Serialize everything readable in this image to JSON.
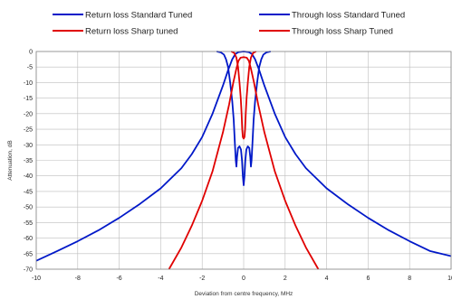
{
  "chart_data": {
    "type": "line",
    "title": "",
    "xlabel": "Deviation from centre frequency, MHz",
    "ylabel": "Attenuation, dB",
    "xlim": [
      -10,
      10
    ],
    "ylim": [
      -70,
      0
    ],
    "x_ticks": [
      -10,
      -8,
      -6,
      -4,
      -2,
      0,
      2,
      4,
      6,
      8,
      10
    ],
    "y_ticks": [
      0,
      -5,
      -10,
      -15,
      -20,
      -25,
      -30,
      -35,
      -40,
      -45,
      -50,
      -55,
      -60,
      -65,
      -70
    ],
    "grid": true,
    "legend_position": "top",
    "series": [
      {
        "name": "Return loss Standard Tuned",
        "color": "#0018c8",
        "points": [
          [
            -1.3,
            0
          ],
          [
            -1.1,
            -0.3
          ],
          [
            -0.95,
            -1
          ],
          [
            -0.85,
            -2.5
          ],
          [
            -0.75,
            -5
          ],
          [
            -0.65,
            -10
          ],
          [
            -0.55,
            -16
          ],
          [
            -0.48,
            -22
          ],
          [
            -0.42,
            -30
          ],
          [
            -0.38,
            -35
          ],
          [
            -0.35,
            -37
          ],
          [
            -0.32,
            -34
          ],
          [
            -0.27,
            -31
          ],
          [
            -0.2,
            -30.5
          ],
          [
            -0.13,
            -31.5
          ],
          [
            -0.08,
            -35
          ],
          [
            -0.04,
            -40
          ],
          [
            0,
            -43
          ],
          [
            0.04,
            -40
          ],
          [
            0.08,
            -35
          ],
          [
            0.13,
            -31.5
          ],
          [
            0.2,
            -30.5
          ],
          [
            0.27,
            -31
          ],
          [
            0.32,
            -34
          ],
          [
            0.35,
            -37
          ],
          [
            0.38,
            -35
          ],
          [
            0.42,
            -30
          ],
          [
            0.48,
            -22
          ],
          [
            0.55,
            -16
          ],
          [
            0.65,
            -10
          ],
          [
            0.75,
            -5
          ],
          [
            0.85,
            -2.5
          ],
          [
            0.95,
            -1
          ],
          [
            1.1,
            -0.3
          ],
          [
            1.3,
            0
          ]
        ]
      },
      {
        "name": "Through loss Standard Tuned",
        "color": "#0018c8",
        "points": [
          [
            -10,
            -67.3
          ],
          [
            -9,
            -64.2
          ],
          [
            -8,
            -61
          ],
          [
            -7,
            -57.5
          ],
          [
            -6,
            -53.5
          ],
          [
            -5,
            -49
          ],
          [
            -4,
            -44
          ],
          [
            -3,
            -37.5
          ],
          [
            -2.5,
            -33
          ],
          [
            -2,
            -27.5
          ],
          [
            -1.5,
            -20
          ],
          [
            -1,
            -11
          ],
          [
            -0.75,
            -6
          ],
          [
            -0.55,
            -2.5
          ],
          [
            -0.4,
            -0.8
          ],
          [
            -0.25,
            -0.2
          ],
          [
            0,
            0
          ],
          [
            0.25,
            -0.2
          ],
          [
            0.4,
            -0.8
          ],
          [
            0.55,
            -2.5
          ],
          [
            0.75,
            -6
          ],
          [
            1,
            -11
          ],
          [
            1.5,
            -20
          ],
          [
            2,
            -27.5
          ],
          [
            2.5,
            -33
          ],
          [
            3,
            -37.5
          ],
          [
            4,
            -44
          ],
          [
            5,
            -49
          ],
          [
            6,
            -53.5
          ],
          [
            7,
            -57.5
          ],
          [
            8,
            -61
          ],
          [
            9,
            -64.2
          ],
          [
            10,
            -65.8
          ]
        ]
      },
      {
        "name": "Return loss Sharp tuned",
        "color": "#e00000",
        "points": [
          [
            -0.6,
            0
          ],
          [
            -0.45,
            -0.5
          ],
          [
            -0.35,
            -2
          ],
          [
            -0.27,
            -5
          ],
          [
            -0.2,
            -10
          ],
          [
            -0.14,
            -15
          ],
          [
            -0.1,
            -20
          ],
          [
            -0.07,
            -25
          ],
          [
            -0.04,
            -27.5
          ],
          [
            0,
            -28
          ],
          [
            0.04,
            -27.5
          ],
          [
            0.07,
            -25
          ],
          [
            0.1,
            -20
          ],
          [
            0.14,
            -15
          ],
          [
            0.2,
            -10
          ],
          [
            0.27,
            -5
          ],
          [
            0.35,
            -2
          ],
          [
            0.45,
            -0.5
          ],
          [
            0.6,
            0
          ]
        ]
      },
      {
        "name": "Through loss Sharp Tuned",
        "color": "#e00000",
        "points": [
          [
            -3.6,
            -70
          ],
          [
            -3,
            -63
          ],
          [
            -2.5,
            -56
          ],
          [
            -2,
            -48
          ],
          [
            -1.5,
            -38.5
          ],
          [
            -1,
            -26
          ],
          [
            -0.7,
            -17
          ],
          [
            -0.5,
            -10
          ],
          [
            -0.35,
            -5.5
          ],
          [
            -0.25,
            -3
          ],
          [
            -0.15,
            -2
          ],
          [
            0,
            -1.8
          ],
          [
            0.15,
            -2
          ],
          [
            0.25,
            -3
          ],
          [
            0.35,
            -5.5
          ],
          [
            0.5,
            -10
          ],
          [
            0.7,
            -17
          ],
          [
            1,
            -26
          ],
          [
            1.5,
            -38.5
          ],
          [
            2,
            -48
          ],
          [
            2.5,
            -56
          ],
          [
            3,
            -63
          ],
          [
            3.6,
            -70
          ]
        ]
      }
    ]
  }
}
